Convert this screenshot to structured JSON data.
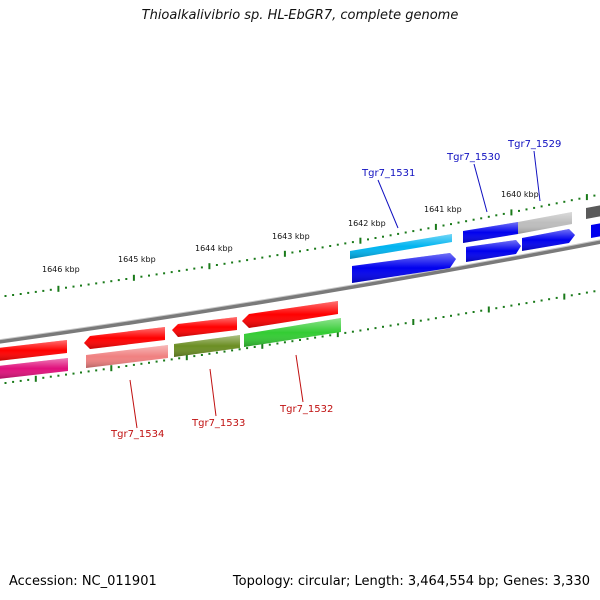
{
  "title": "Thioalkalivibrio sp. HL-EbGR7, complete genome",
  "footer": {
    "accession": "Accession: NC_011901",
    "topology": "Topology: circular; Length: 3,464,554 bp; Genes: 3,330"
  },
  "tick_labels": [
    "1646 kbp",
    "1645 kbp",
    "1644 kbp",
    "1643 kbp",
    "1642 kbp",
    "1641 kbp",
    "1640 kbp"
  ],
  "gene_labels": {
    "top": [
      "Tgr7_1531",
      "Tgr7_1530",
      "Tgr7_1529"
    ],
    "bottom": [
      "Tgr7_1534",
      "Tgr7_1533",
      "Tgr7_1532"
    ]
  },
  "colors": {
    "backbone": "#7a7a7a",
    "ticks": "#1a7a1a",
    "label_top": "#1010c0",
    "label_bottom": "#c01010",
    "red": "#ff0000",
    "blue": "#0000ee",
    "cyan": "#00b4f0",
    "grey": "#bdbdbd",
    "pink": "#f08080",
    "olive": "#6b8e23",
    "green": "#33cc33",
    "magenta": "#e0107c",
    "dark_grey": "#5a5a5a"
  }
}
